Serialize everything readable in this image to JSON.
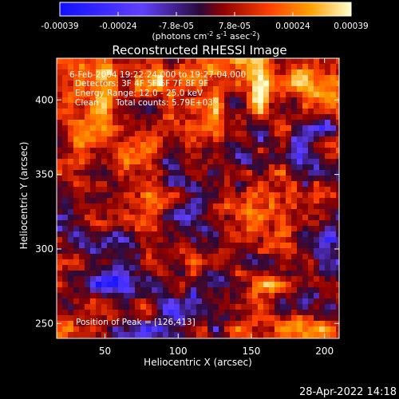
{
  "chart_data": {
    "type": "heatmap",
    "title": "Reconstructed RHESSI Image",
    "xlabel": "Heliocentric X (arcsec)",
    "ylabel": "Heliocentric Y (arcsec)",
    "xlim": [
      17,
      210
    ],
    "ylim": [
      240,
      428
    ],
    "x_ticks": [
      50,
      100,
      150,
      200
    ],
    "y_ticks": [
      250,
      300,
      350,
      400
    ],
    "colorbar": {
      "ticks": [
        "-0.00039",
        "-0.00024",
        "-7.8e-05",
        "7.8e-05",
        "0.00024",
        "0.00039"
      ],
      "range": [
        -0.00039,
        0.00039
      ],
      "unit_label": "(photons cm-2 s-1 asec-2)",
      "colors": [
        "#1010ff",
        "#6040ff",
        "#2a0a3a",
        "#900000",
        "#ff4000",
        "#ffa000",
        "#ffffd0"
      ]
    },
    "annotations": [
      "6-Feb-2004 19:22:24.000 to 19:27:04.000",
      "Detectors: 3F 4F 5F 6F 7F 8F 9F",
      "Energy Range: 12.0 - 25.0 keV",
      "Clean",
      "Total counts: 5.79E+03"
    ],
    "peak_label": "Position of Peak = [126,413]",
    "peak": [
      126,
      413
    ],
    "grid": false
  },
  "footer_timestamp": "28-Apr-2022 14:18"
}
